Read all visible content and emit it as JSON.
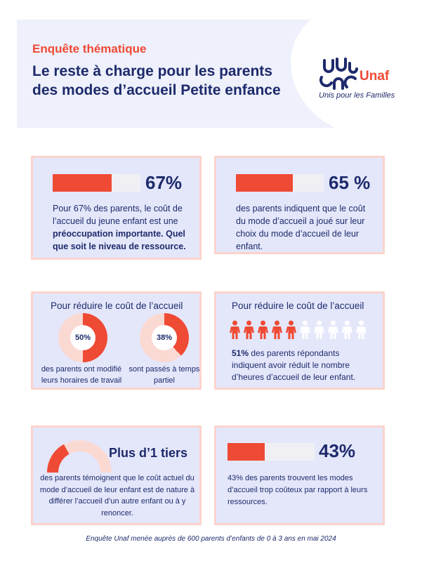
{
  "header": {
    "kicker": "Enquête thématique",
    "title_line1": "Le reste à charge pour les parents",
    "title_line2": "des modes d’accueil Petite enfance",
    "logo_word": "Unaf",
    "logo_tagline": "Unis pour les Familles"
  },
  "card1": {
    "percent_label": "67%",
    "fill": 0.67,
    "text_start": "Pour 67% des parents, le coût de l’accueil du jeune enfant est une ",
    "text_bold": "préoccupation importante. Quel que soit le niveau de ressource."
  },
  "card2": {
    "percent_label": "65 %",
    "fill": 0.65,
    "text": "des parents indiquent que le coût du mode d’accueil a joué sur leur choix du mode d’accueil de leur enfant."
  },
  "card3": {
    "title": "Pour réduire le coût de l’accueil",
    "donut1": {
      "label": "50%",
      "value": 0.5,
      "caption_line1": "des parents ont modifié",
      "caption_line2": "leurs horaires de travail"
    },
    "donut2": {
      "label": "38%",
      "value": 0.38,
      "caption_line1": "sont passés à temps",
      "caption_line2": "partiel"
    }
  },
  "card4": {
    "title": "Pour réduire le coût de l’accueil",
    "people_filled": 5,
    "people_total": 10,
    "text_bold": "51%",
    "text_rest": " des parents répondants indiquent avoir réduit le nombre d’heures d’accueil de leur enfant."
  },
  "card5": {
    "headline": "Plus d’1 tiers",
    "gauge_value": 0.34,
    "text": "des parents témoignent que le coût actuel du mode d’accueil de leur enfant est de nature à différer l’accueil d’un autre enfant ou à y renoncer."
  },
  "card6": {
    "percent_label": "43%",
    "fill": 0.43,
    "text": "43% des parents trouvent les modes d’accueil trop coûteux par rapport à leurs ressources."
  },
  "footer": "Enquête Unaf menée auprès de 600 parents d’enfants de 0 à 3 ans en mai 2024",
  "colors": {
    "accent": "#ef4a34",
    "navy": "#1d2a6b",
    "card_bg": "#e4e7fa",
    "card_border": "#fbd3cc",
    "track": "#f0f0f4",
    "donut_track": "#fbd9d3"
  }
}
